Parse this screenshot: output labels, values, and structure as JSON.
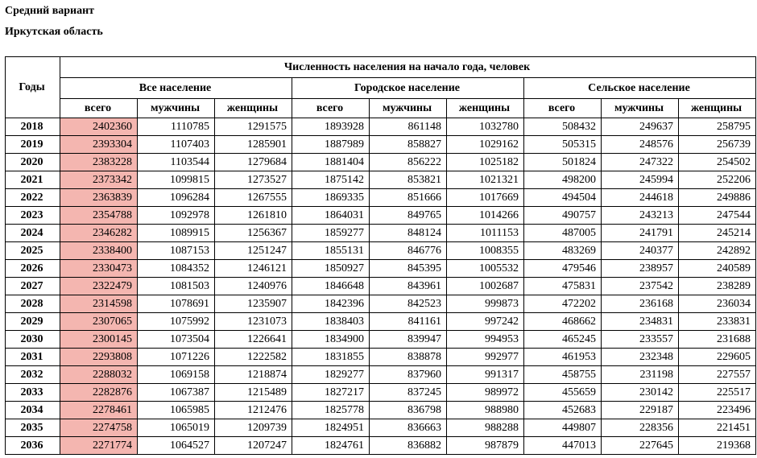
{
  "title": "Средний вариант",
  "subtitle": "Иркутская область",
  "type": "table",
  "highlight_color": "#f4b6b0",
  "border_color": "#000000",
  "background_color": "#ffffff",
  "font_family": "Times New Roman",
  "headers": {
    "col_years": "Годы",
    "main": "Численность населения на начало года, человек",
    "groups": [
      "Все население",
      "Городское население",
      "Сельское население"
    ],
    "sub": [
      "всего",
      "мужчины",
      "женщины"
    ]
  },
  "rows": [
    {
      "year": "2018",
      "g1": [
        "2402360",
        "1110785",
        "1291575"
      ],
      "g2": [
        "1893928",
        "861148",
        "1032780"
      ],
      "g3": [
        "508432",
        "249637",
        "258795"
      ]
    },
    {
      "year": "2019",
      "g1": [
        "2393304",
        "1107403",
        "1285901"
      ],
      "g2": [
        "1887989",
        "858827",
        "1029162"
      ],
      "g3": [
        "505315",
        "248576",
        "256739"
      ]
    },
    {
      "year": "2020",
      "g1": [
        "2383228",
        "1103544",
        "1279684"
      ],
      "g2": [
        "1881404",
        "856222",
        "1025182"
      ],
      "g3": [
        "501824",
        "247322",
        "254502"
      ]
    },
    {
      "year": "2021",
      "g1": [
        "2373342",
        "1099815",
        "1273527"
      ],
      "g2": [
        "1875142",
        "853821",
        "1021321"
      ],
      "g3": [
        "498200",
        "245994",
        "252206"
      ]
    },
    {
      "year": "2022",
      "g1": [
        "2363839",
        "1096284",
        "1267555"
      ],
      "g2": [
        "1869335",
        "851666",
        "1017669"
      ],
      "g3": [
        "494504",
        "244618",
        "249886"
      ]
    },
    {
      "year": "2023",
      "g1": [
        "2354788",
        "1092978",
        "1261810"
      ],
      "g2": [
        "1864031",
        "849765",
        "1014266"
      ],
      "g3": [
        "490757",
        "243213",
        "247544"
      ]
    },
    {
      "year": "2024",
      "g1": [
        "2346282",
        "1089915",
        "1256367"
      ],
      "g2": [
        "1859277",
        "848124",
        "1011153"
      ],
      "g3": [
        "487005",
        "241791",
        "245214"
      ]
    },
    {
      "year": "2025",
      "g1": [
        "2338400",
        "1087153",
        "1251247"
      ],
      "g2": [
        "1855131",
        "846776",
        "1008355"
      ],
      "g3": [
        "483269",
        "240377",
        "242892"
      ]
    },
    {
      "year": "2026",
      "g1": [
        "2330473",
        "1084352",
        "1246121"
      ],
      "g2": [
        "1850927",
        "845395",
        "1005532"
      ],
      "g3": [
        "479546",
        "238957",
        "240589"
      ]
    },
    {
      "year": "2027",
      "g1": [
        "2322479",
        "1081503",
        "1240976"
      ],
      "g2": [
        "1846648",
        "843961",
        "1002687"
      ],
      "g3": [
        "475831",
        "237542",
        "238289"
      ]
    },
    {
      "year": "2028",
      "g1": [
        "2314598",
        "1078691",
        "1235907"
      ],
      "g2": [
        "1842396",
        "842523",
        "999873"
      ],
      "g3": [
        "472202",
        "236168",
        "236034"
      ]
    },
    {
      "year": "2029",
      "g1": [
        "2307065",
        "1075992",
        "1231073"
      ],
      "g2": [
        "1838403",
        "841161",
        "997242"
      ],
      "g3": [
        "468662",
        "234831",
        "233831"
      ]
    },
    {
      "year": "2030",
      "g1": [
        "2300145",
        "1073504",
        "1226641"
      ],
      "g2": [
        "1834900",
        "839947",
        "994953"
      ],
      "g3": [
        "465245",
        "233557",
        "231688"
      ]
    },
    {
      "year": "2031",
      "g1": [
        "2293808",
        "1071226",
        "1222582"
      ],
      "g2": [
        "1831855",
        "838878",
        "992977"
      ],
      "g3": [
        "461953",
        "232348",
        "229605"
      ]
    },
    {
      "year": "2032",
      "g1": [
        "2288032",
        "1069158",
        "1218874"
      ],
      "g2": [
        "1829277",
        "837960",
        "991317"
      ],
      "g3": [
        "458755",
        "231198",
        "227557"
      ]
    },
    {
      "year": "2033",
      "g1": [
        "2282876",
        "1067387",
        "1215489"
      ],
      "g2": [
        "1827217",
        "837245",
        "989972"
      ],
      "g3": [
        "455659",
        "230142",
        "225517"
      ]
    },
    {
      "year": "2034",
      "g1": [
        "2278461",
        "1065985",
        "1212476"
      ],
      "g2": [
        "1825778",
        "836798",
        "988980"
      ],
      "g3": [
        "452683",
        "229187",
        "223496"
      ]
    },
    {
      "year": "2035",
      "g1": [
        "2274758",
        "1065019",
        "1209739"
      ],
      "g2": [
        "1824951",
        "836663",
        "988288"
      ],
      "g3": [
        "449807",
        "228356",
        "221451"
      ]
    },
    {
      "year": "2036",
      "g1": [
        "2271774",
        "1064527",
        "1207247"
      ],
      "g2": [
        "1824761",
        "836882",
        "987879"
      ],
      "g3": [
        "447013",
        "227645",
        "219368"
      ]
    }
  ]
}
